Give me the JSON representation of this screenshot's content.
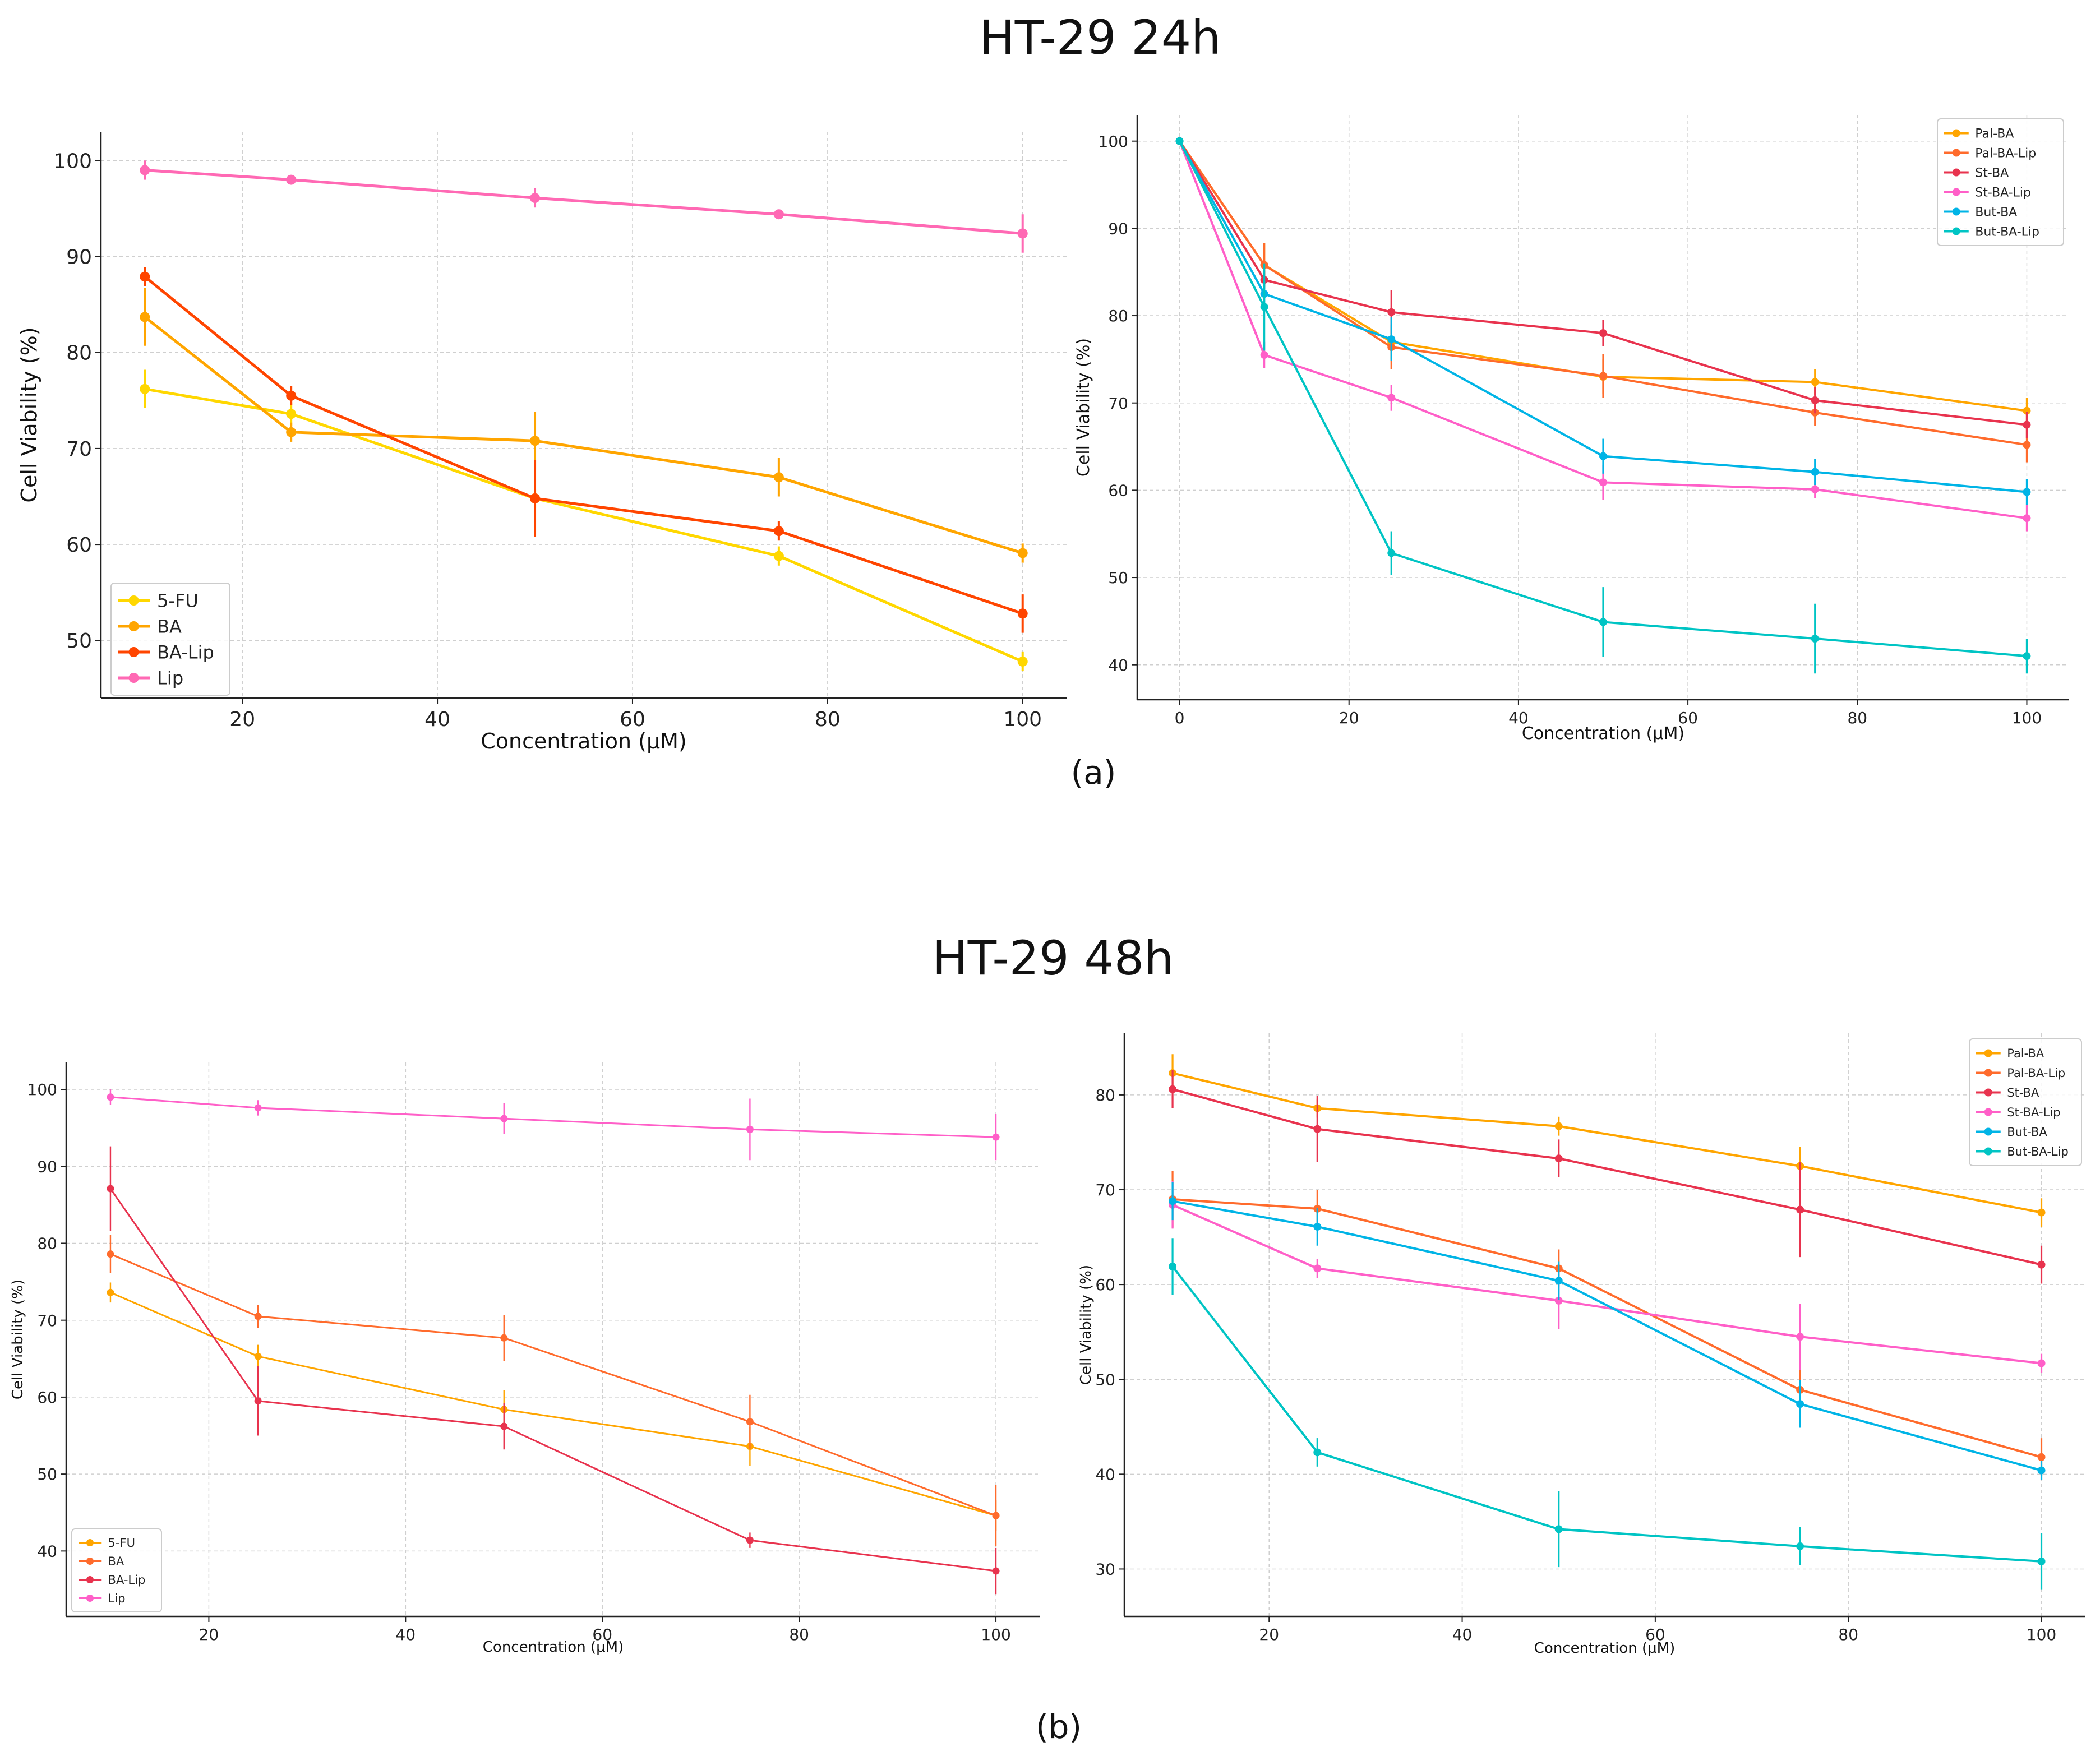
{
  "headings": {
    "top": "HT-29 24h",
    "bottom": "HT-29 48h"
  },
  "panel_labels": {
    "a": "(a)",
    "b": "(b)"
  },
  "chart_data": [
    {
      "id": "a_left",
      "type": "line",
      "xlabel": "Concentration (µM)",
      "ylabel": "Cell Viability (%)",
      "xlim": [
        5.5,
        104.5
      ],
      "ylim": [
        44,
        103
      ],
      "xticks": [
        20,
        40,
        60,
        80,
        100
      ],
      "yticks": [
        50,
        60,
        70,
        80,
        90,
        100
      ],
      "grid": true,
      "legend_position": "bottom-left",
      "series": [
        {
          "name": "5-FU",
          "color": "#FFD700",
          "x": [
            10,
            25,
            50,
            75,
            100
          ],
          "y": [
            76.2,
            73.6,
            64.8,
            58.8,
            47.8
          ],
          "err": [
            2,
            1.2,
            1,
            1,
            1
          ]
        },
        {
          "name": "BA",
          "color": "#FFA500",
          "x": [
            10,
            25,
            50,
            75,
            100
          ],
          "y": [
            83.7,
            71.7,
            70.8,
            67.0,
            59.1
          ],
          "err": [
            3,
            1,
            3,
            2,
            1
          ]
        },
        {
          "name": "BA-Lip",
          "color": "#FF4500",
          "x": [
            10,
            25,
            50,
            75,
            100
          ],
          "y": [
            87.9,
            75.5,
            64.8,
            61.4,
            52.8
          ],
          "err": [
            1,
            1,
            4,
            1,
            2
          ]
        },
        {
          "name": "Lip",
          "color": "#FF69B4",
          "x": [
            10,
            25,
            50,
            75,
            100
          ],
          "y": [
            99.0,
            98.0,
            96.1,
            94.4,
            92.4
          ],
          "err": [
            1,
            0.5,
            1,
            0.5,
            2
          ]
        }
      ]
    },
    {
      "id": "a_right",
      "type": "line",
      "xlabel": "Concentration (µM)",
      "ylabel": "Cell Viability (%)",
      "xlim": [
        -5,
        105
      ],
      "ylim": [
        36,
        103
      ],
      "xticks": [
        0,
        20,
        40,
        60,
        80,
        100
      ],
      "yticks": [
        40,
        50,
        60,
        70,
        80,
        90,
        100
      ],
      "grid": true,
      "legend_position": "top-right",
      "series": [
        {
          "name": "Pal-BA",
          "color": "#FFA500",
          "x": [
            0,
            10,
            25,
            50,
            75,
            100
          ],
          "y": [
            100,
            85.8,
            77.0,
            73.0,
            72.4,
            69.1
          ],
          "err": [
            0,
            2.5,
            2,
            2,
            1.5,
            1.5
          ]
        },
        {
          "name": "Pal-BA-Lip",
          "color": "#FF6B2C",
          "x": [
            0,
            10,
            25,
            50,
            75,
            100
          ],
          "y": [
            100,
            85.8,
            76.4,
            73.1,
            68.9,
            65.2
          ],
          "err": [
            0,
            2.5,
            2.5,
            2.5,
            1.5,
            2
          ]
        },
        {
          "name": "St-BA",
          "color": "#E8334E",
          "x": [
            0,
            10,
            25,
            50,
            75,
            100
          ],
          "y": [
            100,
            84.1,
            80.4,
            78.0,
            70.3,
            67.5
          ],
          "err": [
            0,
            1,
            2.5,
            1.5,
            1.5,
            1.5
          ]
        },
        {
          "name": "St-BA-Lip",
          "color": "#FF5FC8",
          "x": [
            0,
            10,
            25,
            50,
            75,
            100
          ],
          "y": [
            100,
            75.5,
            70.6,
            60.9,
            60.1,
            56.8
          ],
          "err": [
            0,
            1.5,
            1.5,
            2,
            1,
            1.5
          ]
        },
        {
          "name": "But-BA",
          "color": "#00B4E6",
          "x": [
            0,
            10,
            25,
            50,
            75,
            100
          ],
          "y": [
            100,
            82.5,
            77.3,
            63.9,
            62.1,
            59.8
          ],
          "err": [
            0,
            1.5,
            2.5,
            2,
            1.5,
            1.5
          ]
        },
        {
          "name": "But-BA-Lip",
          "color": "#00C4C4",
          "x": [
            0,
            10,
            25,
            50,
            75,
            100
          ],
          "y": [
            100,
            81.0,
            52.8,
            44.9,
            43.0,
            41.0
          ],
          "err": [
            0,
            5,
            2.5,
            4,
            4,
            2
          ]
        }
      ]
    },
    {
      "id": "b_left",
      "type": "line",
      "xlabel": "Concentration (µM)",
      "ylabel": "Cell Viability (%)",
      "xlim": [
        5.5,
        104.5
      ],
      "ylim": [
        31.5,
        103.5
      ],
      "xticks": [
        20,
        40,
        60,
        80,
        100
      ],
      "yticks": [
        40,
        50,
        60,
        70,
        80,
        90,
        100
      ],
      "grid": true,
      "legend_position": "bottom-left",
      "series": [
        {
          "name": "5-FU",
          "color": "#FFA500",
          "x": [
            10,
            25,
            50,
            75,
            100
          ],
          "y": [
            73.6,
            65.3,
            58.4,
            53.6,
            44.6
          ],
          "err": [
            1.3,
            1.5,
            2.5,
            2.5,
            2
          ]
        },
        {
          "name": "BA",
          "color": "#FF6B2C",
          "x": [
            10,
            25,
            50,
            75,
            100
          ],
          "y": [
            78.6,
            70.5,
            67.7,
            56.8,
            44.6
          ],
          "err": [
            2.5,
            1.5,
            3,
            3.5,
            4
          ]
        },
        {
          "name": "BA-Lip",
          "color": "#E8334E",
          "x": [
            10,
            25,
            50,
            75,
            100
          ],
          "y": [
            87.1,
            59.5,
            56.2,
            41.4,
            37.4
          ],
          "err": [
            5.5,
            4.5,
            3,
            1,
            3
          ]
        },
        {
          "name": "Lip",
          "color": "#FF5FC8",
          "x": [
            10,
            25,
            50,
            75,
            100
          ],
          "y": [
            99.0,
            97.6,
            96.2,
            94.8,
            93.8
          ],
          "err": [
            1,
            1,
            2,
            4,
            3
          ]
        }
      ]
    },
    {
      "id": "b_right",
      "type": "line",
      "xlabel": "Concentration (µM)",
      "ylabel": "Cell Viability (%)",
      "xlim": [
        5,
        104.5
      ],
      "ylim": [
        25,
        86.5
      ],
      "xticks": [
        20,
        40,
        60,
        80,
        100
      ],
      "yticks": [
        30,
        40,
        50,
        60,
        70,
        80
      ],
      "grid": true,
      "legend_position": "top-right",
      "series": [
        {
          "name": "Pal-BA",
          "color": "#FFA500",
          "x": [
            10,
            25,
            50,
            75,
            100
          ],
          "y": [
            82.3,
            78.6,
            76.7,
            72.5,
            67.6
          ],
          "err": [
            2,
            1,
            1,
            2,
            1.5
          ]
        },
        {
          "name": "Pal-BA-Lip",
          "color": "#FF6B2C",
          "x": [
            10,
            25,
            50,
            75,
            100
          ],
          "y": [
            69.0,
            68.0,
            61.7,
            48.9,
            41.8
          ],
          "err": [
            3,
            2,
            2,
            2.5,
            2
          ]
        },
        {
          "name": "St-BA",
          "color": "#E8334E",
          "x": [
            10,
            25,
            50,
            75,
            100
          ],
          "y": [
            80.6,
            76.4,
            73.3,
            67.9,
            62.1
          ],
          "err": [
            2,
            3.5,
            2,
            5,
            2
          ]
        },
        {
          "name": "St-BA-Lip",
          "color": "#FF5FC8",
          "x": [
            10,
            25,
            50,
            75,
            100
          ],
          "y": [
            68.4,
            61.7,
            58.3,
            54.5,
            51.7
          ],
          "err": [
            2.5,
            1,
            3,
            3.5,
            1
          ]
        },
        {
          "name": "But-BA",
          "color": "#00B4E6",
          "x": [
            10,
            25,
            50,
            75,
            100
          ],
          "y": [
            68.8,
            66.1,
            60.4,
            47.4,
            40.4
          ],
          "err": [
            2,
            2,
            2,
            2.5,
            1
          ]
        },
        {
          "name": "But-BA-Lip",
          "color": "#00C4C4",
          "x": [
            10,
            25,
            50,
            75,
            100
          ],
          "y": [
            61.9,
            42.3,
            34.2,
            32.4,
            30.8
          ],
          "err": [
            3,
            1.5,
            4,
            2,
            3
          ]
        }
      ]
    }
  ]
}
